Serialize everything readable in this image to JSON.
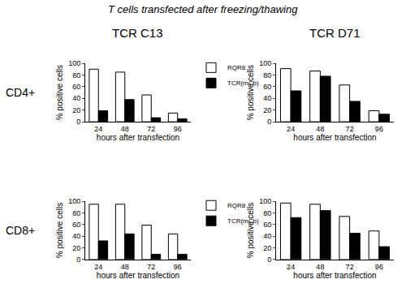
{
  "title": "T cells transfected after freezing/thawing",
  "column_titles": [
    "TCR C13",
    "TCR D71"
  ],
  "row_titles": [
    "CD4+",
    "CD8+"
  ],
  "chart_data": [
    {
      "type": "bar",
      "categories": [
        "24",
        "48",
        "72",
        "96"
      ],
      "series": [
        {
          "name": "RQR8",
          "color": "#ffffff",
          "values": [
            90,
            85,
            46,
            15
          ]
        },
        {
          "name": "TCR(mCb)",
          "color": "#000000",
          "values": [
            19,
            38,
            7,
            5
          ]
        }
      ],
      "xlabel": "hours after transfection",
      "ylabel": "% positive cells",
      "ylim": [
        0,
        100
      ],
      "yticks": [
        0,
        20,
        40,
        60,
        80,
        100
      ],
      "legend": "right"
    },
    {
      "type": "bar",
      "categories": [
        "24",
        "48",
        "72",
        "96"
      ],
      "series": [
        {
          "name": "RQR8",
          "color": "#ffffff",
          "values": [
            91,
            87,
            63,
            19
          ]
        },
        {
          "name": "TCR(mCb)",
          "color": "#000000",
          "values": [
            53,
            78,
            35,
            13
          ]
        }
      ],
      "xlabel": "hours after transfection",
      "ylabel": "% positive cells",
      "ylim": [
        0,
        100
      ],
      "yticks": [
        0,
        20,
        40,
        60,
        80,
        100
      ]
    },
    {
      "type": "bar",
      "categories": [
        "24",
        "48",
        "72",
        "96"
      ],
      "series": [
        {
          "name": "RQR8",
          "color": "#ffffff",
          "values": [
            95,
            95,
            59,
            44
          ]
        },
        {
          "name": "TCR(mCb)",
          "color": "#000000",
          "values": [
            32,
            44,
            9,
            9
          ]
        }
      ],
      "xlabel": "hours after transfection",
      "ylabel": "% positive cells",
      "ylim": [
        0,
        100
      ],
      "yticks": [
        0,
        20,
        40,
        60,
        80,
        100
      ],
      "legend": "right"
    },
    {
      "type": "bar",
      "categories": [
        "24",
        "48",
        "72",
        "96"
      ],
      "series": [
        {
          "name": "RQR8",
          "color": "#ffffff",
          "values": [
            97,
            95,
            74,
            49
          ]
        },
        {
          "name": "TCR(mCb)",
          "color": "#000000",
          "values": [
            72,
            84,
            45,
            22
          ]
        }
      ],
      "xlabel": "hours after transfection",
      "ylabel": "% positive cells",
      "ylim": [
        0,
        100
      ],
      "yticks": [
        0,
        20,
        40,
        60,
        80,
        100
      ]
    }
  ]
}
